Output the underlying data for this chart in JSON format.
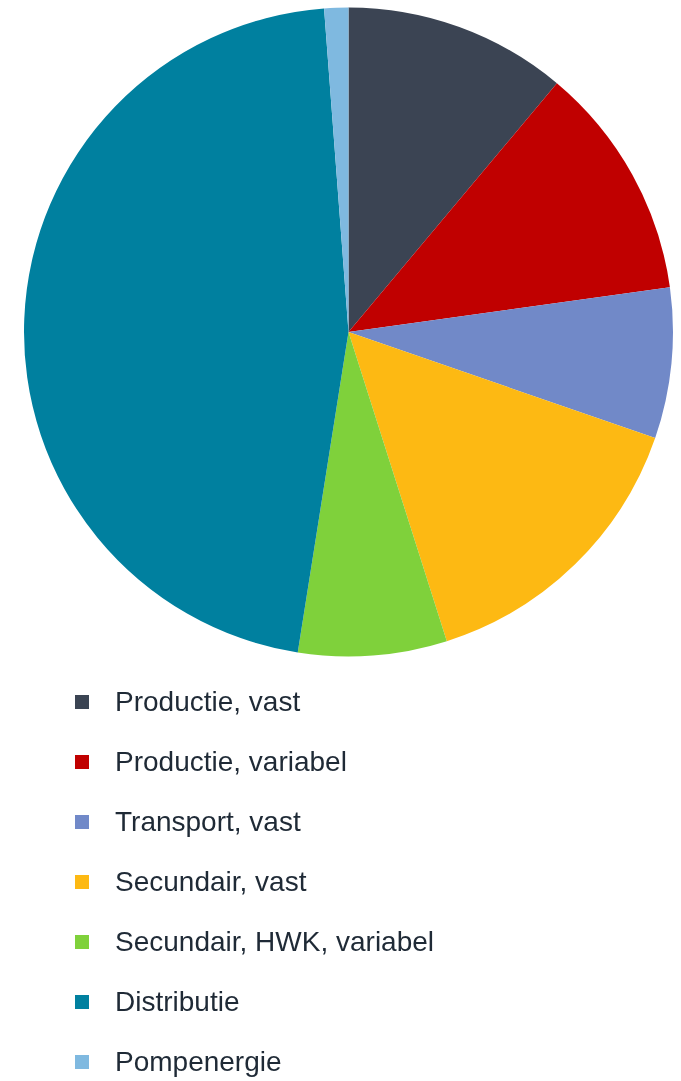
{
  "chart_data": {
    "type": "pie",
    "categories": [
      "Productie, vast",
      "Productie, variabel",
      "Transport, vast",
      "Secundair, vast",
      "Secundair, HWK, variabel",
      "Distributie",
      "Pompenergie"
    ],
    "values": [
      11.1,
      11.7,
      7.5,
      14.8,
      7.4,
      46.3,
      1.2
    ],
    "colors": [
      "#3b4453",
      "#c00000",
      "#7189c8",
      "#fdb913",
      "#7fd13b",
      "#00809f",
      "#7fb9e0"
    ],
    "legend": "bottom"
  }
}
